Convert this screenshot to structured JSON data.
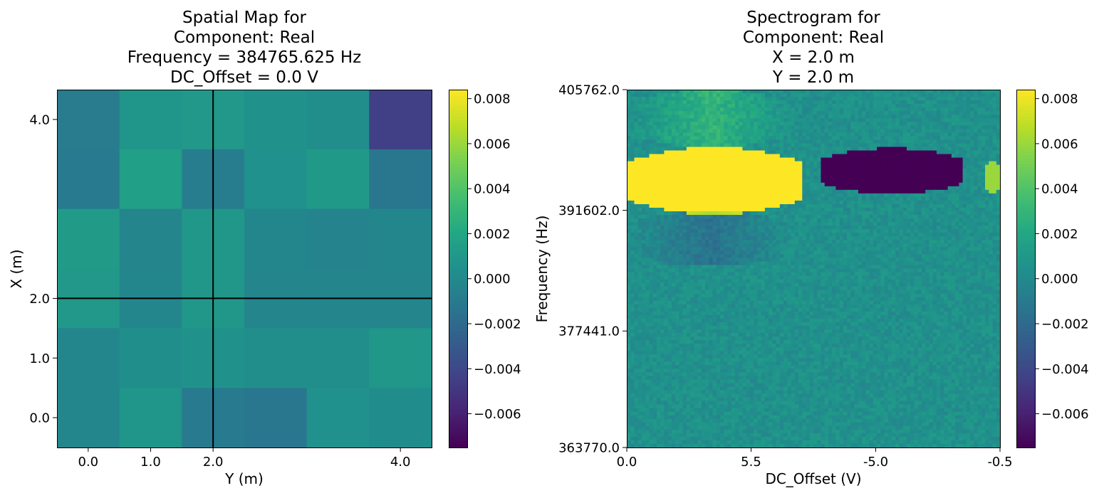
{
  "chart_data": [
    {
      "type": "heatmap",
      "title_lines": [
        "Spatial Map for",
        "Component: Real",
        "Frequency = 384765.625 Hz",
        "DC_Offset = 0.0 V"
      ],
      "xlabel": "Y (m)",
      "ylabel": "X (m)",
      "xticks": [
        {
          "value": 0,
          "label": "0.0"
        },
        {
          "value": 1,
          "label": "1.0"
        },
        {
          "value": 2,
          "label": "2.0"
        },
        {
          "value": 4,
          "label": "4.0"
        }
      ],
      "yticks": [
        {
          "value": 0,
          "label": "0.0"
        },
        {
          "value": 1,
          "label": "1.0"
        },
        {
          "value": 2,
          "label": "2.0"
        },
        {
          "value": 4,
          "label": "4.0"
        }
      ],
      "crosshair": {
        "y": 2.0,
        "x": 2.0
      },
      "grid_values_top_to_bottom": [
        [
          -0.0009,
          0.0008,
          0.001,
          0.0006,
          0.0003,
          -0.0045
        ],
        [
          -0.001,
          0.0015,
          -0.0008,
          0.0005,
          0.0011,
          -0.0012
        ],
        [
          0.0012,
          -0.0003,
          0.0009,
          -0.0002,
          -0.0004,
          -0.0002
        ],
        [
          0.001,
          -0.0002,
          0.0009,
          -0.0003,
          -0.0003,
          -0.0003
        ],
        [
          -0.0002,
          0.0004,
          0.0006,
          0.0003,
          0.0003,
          0.0009
        ],
        [
          -0.0002,
          0.0008,
          -0.001,
          -0.0012,
          0.0005,
          0.0002
        ]
      ],
      "colorbar": {
        "colormap": "viridis",
        "vmin": -0.0075,
        "vmax": 0.0084,
        "ticks": [
          {
            "value": 0.008,
            "label": "0.008"
          },
          {
            "value": 0.006,
            "label": "0.006"
          },
          {
            "value": 0.004,
            "label": "0.004"
          },
          {
            "value": 0.002,
            "label": "0.002"
          },
          {
            "value": 0.0,
            "label": "0.000"
          },
          {
            "value": -0.002,
            "label": "−0.002"
          },
          {
            "value": -0.004,
            "label": "−0.004"
          },
          {
            "value": -0.006,
            "label": "−0.006"
          }
        ]
      }
    },
    {
      "type": "heatmap",
      "title_lines": [
        "Spectrogram for",
        "Component: Real",
        "X = 2.0 m",
        "Y = 2.0 m"
      ],
      "xlabel": "DC_Offset (V)",
      "ylabel": "Frequency (Hz)",
      "xticks": [
        {
          "fraction": 0.0,
          "label": "0.0"
        },
        {
          "fraction": 0.333,
          "label": "5.5"
        },
        {
          "fraction": 0.667,
          "label": "-5.0"
        },
        {
          "fraction": 1.0,
          "label": "-0.5"
        }
      ],
      "yticks": [
        {
          "value": 405762.0,
          "label": "405762.0"
        },
        {
          "value": 391602.0,
          "label": "391602.0"
        },
        {
          "value": 377441.0,
          "label": "377441.0"
        },
        {
          "value": 363770.0,
          "label": "363770.0"
        }
      ],
      "ylim": [
        363770.0,
        405762.0
      ],
      "grid": {
        "columns": 100,
        "rows": 100
      },
      "features": [
        {
          "kind": "positive-blob",
          "dc_offset_fraction_range": [
            0.0,
            0.47
          ],
          "frequency_range": [
            391100,
            399000
          ],
          "value": 0.0084
        },
        {
          "kind": "negative-blob",
          "dc_offset_fraction_range": [
            0.52,
            0.9
          ],
          "frequency_range": [
            393500,
            398900
          ],
          "value": -0.0075
        },
        {
          "kind": "positive-edge",
          "dc_offset_fraction_range": [
            0.96,
            1.0
          ],
          "frequency_range": [
            393500,
            397500
          ],
          "value": 0.006
        },
        {
          "kind": "negative-halo",
          "dc_offset_fraction_range": [
            0.0,
            0.45
          ],
          "frequency_range": [
            385000,
            391600
          ],
          "value": -0.002
        },
        {
          "kind": "positive-halo",
          "dc_offset_fraction_range": [
            0.0,
            0.45
          ],
          "frequency_range": [
            399000,
            405762
          ],
          "value": 0.0025
        }
      ],
      "colorbar": {
        "colormap": "viridis",
        "vmin": -0.0075,
        "vmax": 0.0084,
        "ticks": [
          {
            "value": 0.008,
            "label": "0.008"
          },
          {
            "value": 0.006,
            "label": "0.006"
          },
          {
            "value": 0.004,
            "label": "0.004"
          },
          {
            "value": 0.002,
            "label": "0.002"
          },
          {
            "value": 0.0,
            "label": "0.000"
          },
          {
            "value": -0.002,
            "label": "−0.002"
          },
          {
            "value": -0.004,
            "label": "−0.004"
          },
          {
            "value": -0.006,
            "label": "−0.006"
          }
        ]
      }
    }
  ]
}
